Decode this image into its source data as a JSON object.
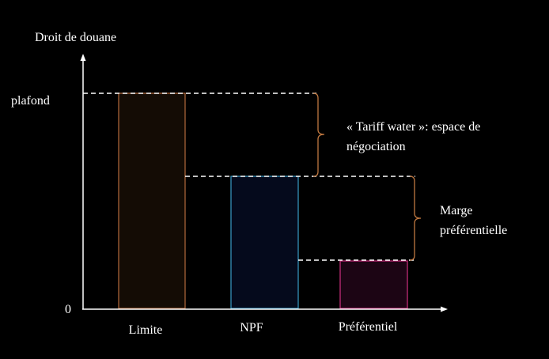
{
  "axis": {
    "y_label": "Droit de douane",
    "y_top_label": "plafond",
    "origin_label": "0"
  },
  "bars": [
    {
      "label": "Limite"
    },
    {
      "label": "NPF"
    },
    {
      "label": "Préférentiel"
    }
  ],
  "annotations": [
    {
      "lines": [
        "« Tariff water »: espace de",
        "négociation"
      ]
    },
    {
      "lines": [
        "Marge",
        "préférentielle"
      ]
    }
  ]
}
